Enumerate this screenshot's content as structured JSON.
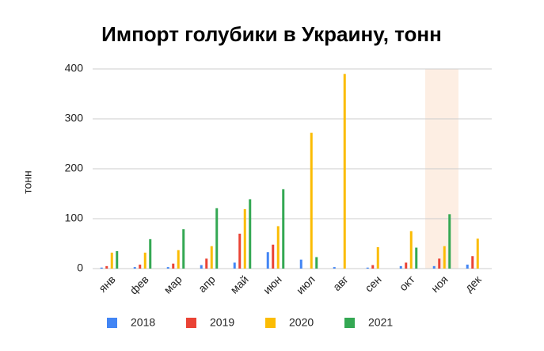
{
  "chart_data": {
    "type": "bar",
    "title": "Импорт голубики в Украину, тонн",
    "y_label": "тонн",
    "categories": [
      "янв",
      "фев",
      "мар",
      "апр",
      "май",
      "июн",
      "июл",
      "авг",
      "сен",
      "окт",
      "ноя",
      "дек"
    ],
    "series": [
      {
        "name": "2018",
        "color": "#4285f4",
        "values": [
          2,
          3,
          3,
          7,
          12,
          33,
          18,
          3,
          2,
          5,
          5,
          8
        ]
      },
      {
        "name": "2019",
        "color": "#ea4335",
        "values": [
          5,
          8,
          10,
          20,
          70,
          48,
          null,
          null,
          7,
          12,
          20,
          25
        ]
      },
      {
        "name": "2020",
        "color": "#fbbc04",
        "values": [
          32,
          32,
          37,
          45,
          119,
          85,
          272,
          390,
          43,
          75,
          45,
          60
        ]
      },
      {
        "name": "2021",
        "color": "#34a853",
        "values": [
          35,
          59,
          79,
          121,
          139,
          159,
          23,
          null,
          null,
          42,
          109,
          null
        ]
      }
    ],
    "ylim": [
      0,
      400
    ],
    "yticks": [
      0,
      100,
      200,
      300,
      400
    ],
    "grid": true,
    "highlight": {
      "category_index": 10,
      "color": "#fdeee3"
    },
    "legend": "bottom"
  }
}
